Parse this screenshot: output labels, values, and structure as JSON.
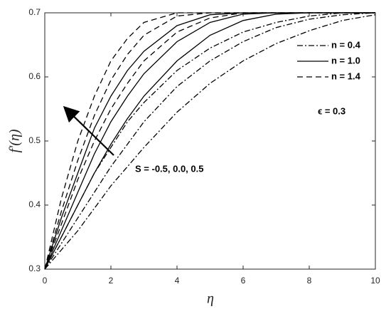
{
  "chart_data": {
    "type": "line",
    "xlabel": "η",
    "ylabel": "f'(η)",
    "annotations": [
      "S = -0.5, 0.0, 0.5",
      "ϵ = 0.3"
    ],
    "x": [
      0,
      0.5,
      1,
      1.5,
      2,
      2.5,
      3,
      4,
      5,
      6,
      7,
      8,
      9,
      10
    ],
    "series": [
      {
        "name": "n = 0.4",
        "color": "#000000",
        "dash": "dashdot",
        "curves": [
          [
            0.3,
            0.35,
            0.4,
            0.45,
            0.49,
            0.53,
            0.56,
            0.61,
            0.645,
            0.67,
            0.685,
            0.695,
            0.7,
            0.7
          ],
          [
            0.3,
            0.34,
            0.38,
            0.42,
            0.46,
            0.495,
            0.53,
            0.585,
            0.625,
            0.655,
            0.677,
            0.69,
            0.697,
            0.7
          ],
          [
            0.3,
            0.33,
            0.36,
            0.395,
            0.43,
            0.46,
            0.49,
            0.545,
            0.59,
            0.625,
            0.652,
            0.672,
            0.688,
            0.697
          ]
        ]
      },
      {
        "name": "n = 1.0",
        "color": "#000000",
        "dash": "solid",
        "curves": [
          [
            0.3,
            0.38,
            0.45,
            0.52,
            0.57,
            0.61,
            0.64,
            0.68,
            0.697,
            0.7,
            0.7,
            0.7,
            0.7,
            0.7
          ],
          [
            0.3,
            0.36,
            0.42,
            0.48,
            0.53,
            0.57,
            0.605,
            0.655,
            0.685,
            0.698,
            0.7,
            0.7,
            0.7,
            0.7
          ],
          [
            0.3,
            0.35,
            0.4,
            0.45,
            0.495,
            0.535,
            0.57,
            0.625,
            0.665,
            0.688,
            0.698,
            0.7,
            0.7,
            0.7
          ]
        ]
      },
      {
        "name": "n = 1.4",
        "color": "#000000",
        "dash": "dashed",
        "curves": [
          [
            0.3,
            0.41,
            0.5,
            0.57,
            0.625,
            0.66,
            0.685,
            0.7,
            0.7,
            0.7,
            0.7,
            0.7,
            0.7,
            0.7
          ],
          [
            0.3,
            0.39,
            0.47,
            0.54,
            0.595,
            0.635,
            0.665,
            0.695,
            0.7,
            0.7,
            0.7,
            0.7,
            0.7,
            0.7
          ],
          [
            0.3,
            0.37,
            0.44,
            0.5,
            0.55,
            0.59,
            0.625,
            0.67,
            0.692,
            0.7,
            0.7,
            0.7,
            0.7,
            0.7
          ]
        ]
      }
    ],
    "xlim": [
      0,
      10
    ],
    "xticks": [
      0,
      2,
      4,
      6,
      8,
      10
    ],
    "ylim": [
      0.3,
      0.7
    ],
    "yticks": [
      0.3,
      0.4,
      0.5,
      0.6,
      0.7
    ],
    "grid": false,
    "legend": "upper right"
  }
}
